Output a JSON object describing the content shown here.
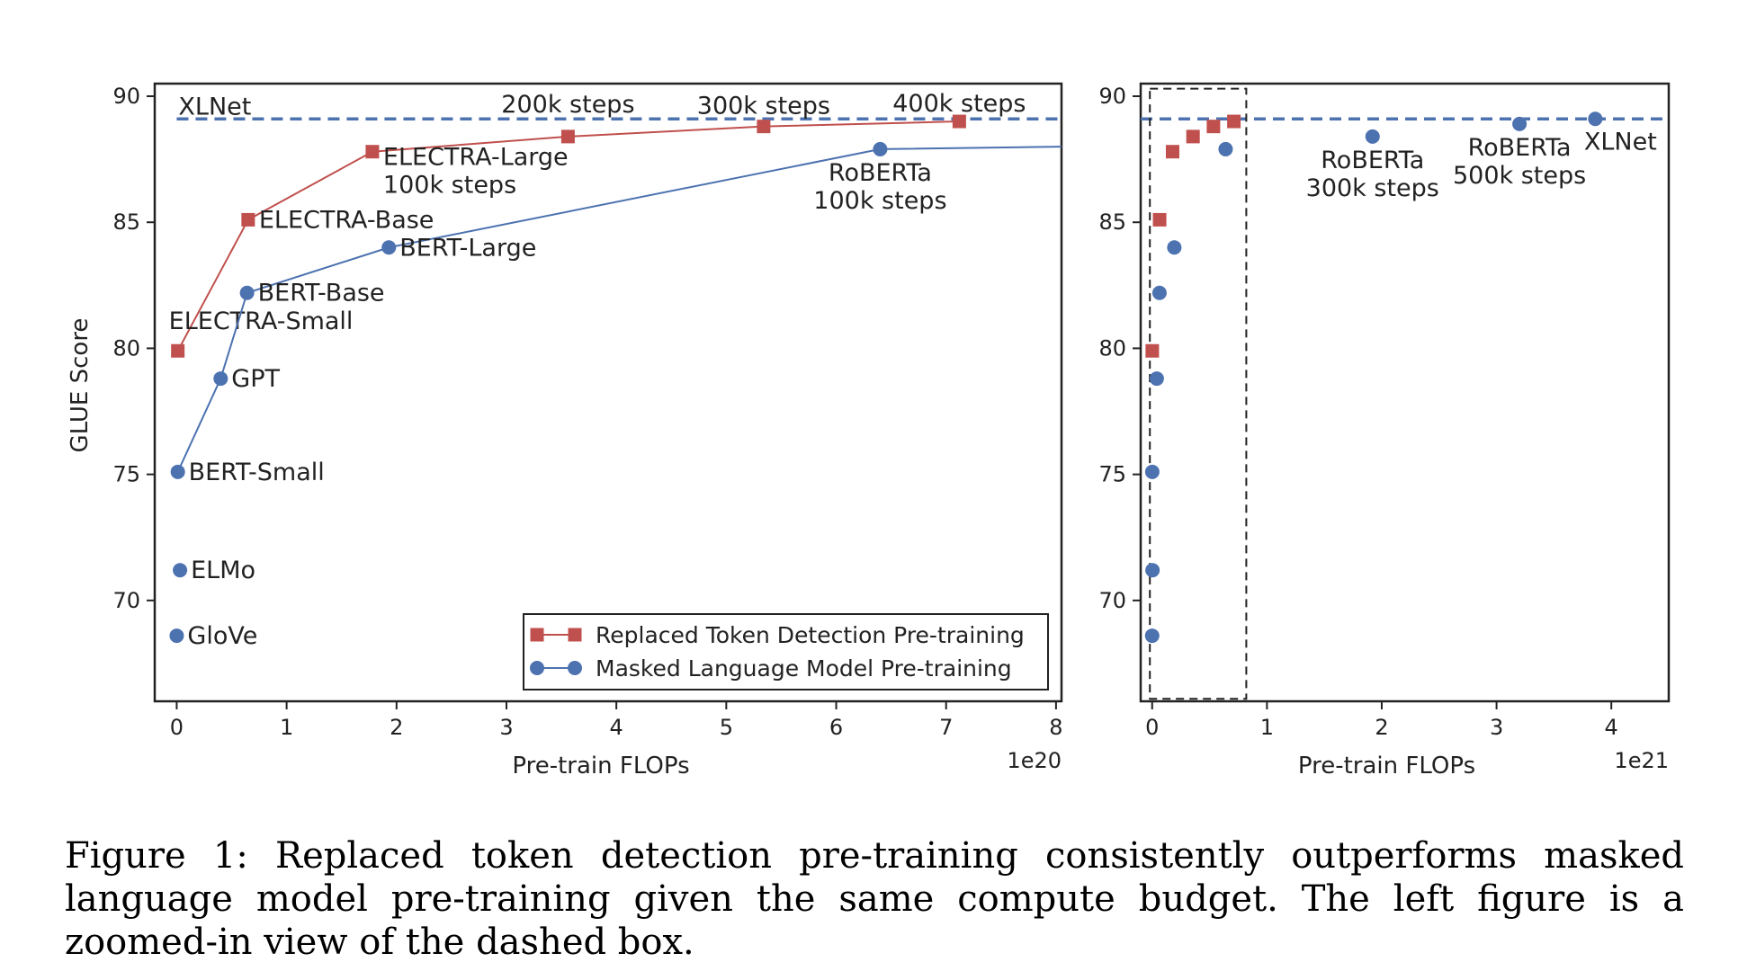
{
  "colors": {
    "rtd": "#c0504d",
    "mlm": "#4c72b0",
    "axis": "#222222"
  },
  "caption": "Figure 1: Replaced token detection pre-training consistently outperforms masked language model pre-training given the same compute budget. The left figure is a zoomed-in view of the dashed box.",
  "chart_data": [
    {
      "type": "line",
      "panel": "left",
      "xlabel": "Pre-train FLOPs",
      "ylabel": "GLUE Score",
      "x_multiplier": "1e20",
      "xlim": [
        -0.2,
        8.05
      ],
      "ylim": [
        66,
        90.5
      ],
      "xticks": [
        0,
        1,
        2,
        3,
        4,
        5,
        6,
        7,
        8
      ],
      "yticks": [
        70,
        75,
        80,
        85,
        90
      ],
      "reference_line": {
        "label": "XLNet",
        "y": 89.1,
        "style": "dashed"
      },
      "series": [
        {
          "name": "Replaced Token Detection Pre-training",
          "marker": "square",
          "points": [
            {
              "x": 0.01,
              "y": 79.9,
              "label": "ELECTRA-Small"
            },
            {
              "x": 0.65,
              "y": 85.1,
              "label": "ELECTRA-Base"
            },
            {
              "x": 1.78,
              "y": 87.8,
              "label": "ELECTRA-Large\n100k steps"
            },
            {
              "x": 3.56,
              "y": 88.4,
              "label": "200k steps"
            },
            {
              "x": 5.34,
              "y": 88.8,
              "label": "300k steps"
            },
            {
              "x": 7.12,
              "y": 89.0,
              "label": "400k steps"
            }
          ]
        },
        {
          "name": "Masked Language Model Pre-training",
          "marker": "circle",
          "connected_points": [
            {
              "x": 0.01,
              "y": 75.1,
              "label": "BERT-Small"
            },
            {
              "x": 0.4,
              "y": 78.8,
              "label": "GPT"
            },
            {
              "x": 0.64,
              "y": 82.2,
              "label": "BERT-Base"
            },
            {
              "x": 1.93,
              "y": 84.0,
              "label": "BERT-Large"
            },
            {
              "x": 6.4,
              "y": 87.9,
              "label": "RoBERTa\n100k steps"
            },
            {
              "x": 8.05,
              "y": 88.0,
              "label": ""
            }
          ],
          "standalone_points": [
            {
              "x": 0.03,
              "y": 71.2,
              "label": "ELMo"
            },
            {
              "x": 0.0,
              "y": 68.6,
              "label": "GloVe"
            }
          ]
        }
      ],
      "legend": {
        "position": "bottom-right"
      }
    },
    {
      "type": "scatter",
      "panel": "right",
      "xlabel": "Pre-train FLOPs",
      "x_multiplier": "1e21",
      "xlim": [
        -0.1,
        4.5
      ],
      "ylim": [
        66,
        90.5
      ],
      "xticks": [
        0,
        1,
        2,
        3,
        4
      ],
      "yticks": [
        70,
        75,
        80,
        85,
        90
      ],
      "reference_line": {
        "y": 89.1,
        "style": "dashed"
      },
      "zoom_box": {
        "x": [
          -0.02,
          0.82
        ],
        "y": [
          66.1,
          90.3
        ],
        "style": "dashed"
      },
      "series": [
        {
          "name": "Replaced Token Detection Pre-training",
          "marker": "square",
          "points": [
            {
              "x": 0.001,
              "y": 79.9
            },
            {
              "x": 0.065,
              "y": 85.1
            },
            {
              "x": 0.178,
              "y": 87.8
            },
            {
              "x": 0.356,
              "y": 88.4
            },
            {
              "x": 0.534,
              "y": 88.8
            },
            {
              "x": 0.712,
              "y": 89.0
            }
          ]
        },
        {
          "name": "Masked Language Model Pre-training",
          "marker": "circle",
          "points": [
            {
              "x": 0.0,
              "y": 68.6
            },
            {
              "x": 0.003,
              "y": 71.2
            },
            {
              "x": 0.001,
              "y": 75.1
            },
            {
              "x": 0.04,
              "y": 78.8
            },
            {
              "x": 0.064,
              "y": 82.2
            },
            {
              "x": 0.193,
              "y": 84.0
            },
            {
              "x": 0.64,
              "y": 87.9
            },
            {
              "x": 1.92,
              "y": 88.4,
              "label": "RoBERTa\n300k steps"
            },
            {
              "x": 3.2,
              "y": 88.9,
              "label": "RoBERTa\n500k steps"
            },
            {
              "x": 3.86,
              "y": 89.1,
              "label": "XLNet"
            }
          ]
        }
      ]
    }
  ]
}
